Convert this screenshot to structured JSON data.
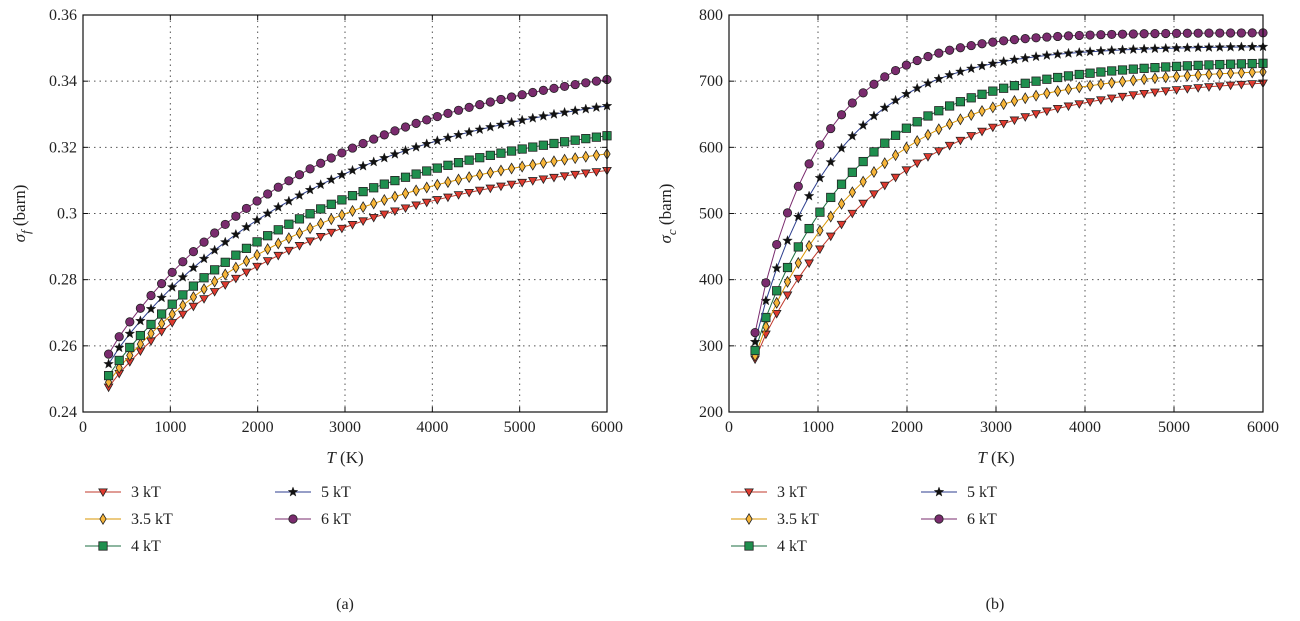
{
  "chart_data": [
    {
      "id": "a",
      "type": "line",
      "caption": "(a)",
      "xlabel_italic": "T",
      "xlabel_rest": " (K)",
      "ylabel_sym": "σ",
      "ylabel_sub": "f",
      "ylabel_rest": " (barn)",
      "xlim": [
        0,
        6000
      ],
      "ylim": [
        0.24,
        0.36
      ],
      "xticks": [
        0,
        1000,
        2000,
        3000,
        4000,
        5000,
        6000
      ],
      "xtick_labels": [
        "0",
        "1000",
        "2000",
        "3000",
        "4000",
        "5000",
        "6000"
      ],
      "yticks": [
        0.24,
        0.26,
        0.28,
        0.3,
        0.32,
        0.34,
        0.36
      ],
      "ytick_labels": [
        "0.24",
        "0.26",
        "0.28",
        "0.3",
        "0.32",
        "0.34",
        "0.36"
      ],
      "grid": true,
      "legend_placement": "below",
      "x_sample": [
        293,
        6000
      ],
      "series": [
        {
          "name": "3 kT",
          "marker": "triangle-down",
          "color": "#e03a2f",
          "line_color": "#c0392b",
          "y_start": 0.2475,
          "y_end": 0.313,
          "shape": 0.7
        },
        {
          "name": "3.5 kT",
          "marker": "diamond",
          "color": "#f7b538",
          "line_color": "#d99500",
          "y_start": 0.249,
          "y_end": 0.318,
          "shape": 0.7
        },
        {
          "name": "4 kT",
          "marker": "square",
          "color": "#1f8f4e",
          "line_color": "#1b6e40",
          "y_start": 0.251,
          "y_end": 0.3235,
          "shape": 0.7
        },
        {
          "name": "5 kT",
          "marker": "star",
          "color": "#111111",
          "line_color": "#2c3e8f",
          "y_start": 0.2545,
          "y_end": 0.3325,
          "shape": 0.7
        },
        {
          "name": "6 kT",
          "marker": "circle",
          "color": "#7a2b6e",
          "line_color": "#7a2b6e",
          "y_start": 0.2575,
          "y_end": 0.3405,
          "shape": 0.7
        }
      ]
    },
    {
      "id": "b",
      "type": "line",
      "caption": "(b)",
      "xlabel_italic": "T",
      "xlabel_rest": " (K)",
      "ylabel_sym": "σ",
      "ylabel_sub": "c",
      "ylabel_rest": " (barn)",
      "xlim": [
        0,
        6000
      ],
      "ylim": [
        200,
        800
      ],
      "xticks": [
        0,
        1000,
        2000,
        3000,
        4000,
        5000,
        6000
      ],
      "xtick_labels": [
        "0",
        "1000",
        "2000",
        "3000",
        "4000",
        "5000",
        "6000"
      ],
      "yticks": [
        200,
        300,
        400,
        500,
        600,
        700,
        800
      ],
      "ytick_labels": [
        "200",
        "300",
        "400",
        "500",
        "600",
        "700",
        "800"
      ],
      "grid": true,
      "legend_placement": "below",
      "x_sample": [
        293,
        6000
      ],
      "series": [
        {
          "name": "3 kT",
          "marker": "triangle-down",
          "color": "#e03a2f",
          "line_color": "#c0392b",
          "y_start": 280,
          "y_end": 697,
          "shape": 1.15
        },
        {
          "name": "3.5 kT",
          "marker": "diamond",
          "color": "#f7b538",
          "line_color": "#d99500",
          "y_start": 285,
          "y_end": 714,
          "shape": 1.35
        },
        {
          "name": "4 kT",
          "marker": "square",
          "color": "#1f8f4e",
          "line_color": "#1b6e40",
          "y_start": 293,
          "y_end": 727,
          "shape": 1.55
        },
        {
          "name": "5 kT",
          "marker": "star",
          "color": "#111111",
          "line_color": "#2c3e8f",
          "y_start": 306,
          "y_end": 752,
          "shape": 1.95
        },
        {
          "name": "6 kT",
          "marker": "circle",
          "color": "#7a2b6e",
          "line_color": "#7a2b6e",
          "y_start": 320,
          "y_end": 773,
          "shape": 2.4
        }
      ]
    }
  ]
}
